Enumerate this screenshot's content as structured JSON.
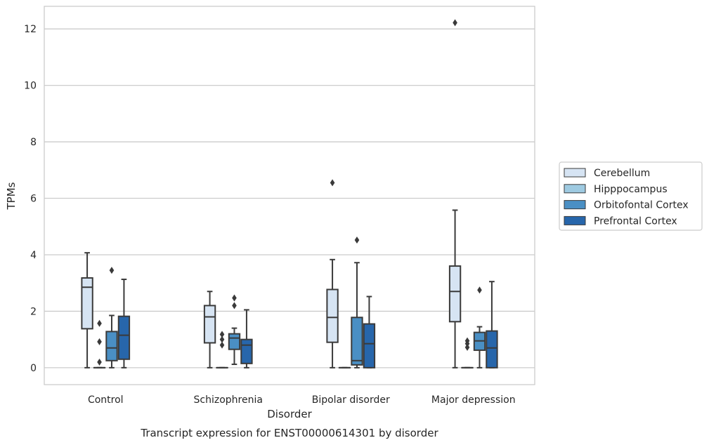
{
  "chart_data": {
    "type": "boxplot",
    "title": "Transcript expression for ENST00000614301 by disorder",
    "xlabel": "Disorder",
    "ylabel": "TPMs",
    "categories": [
      "Control",
      "Schizophrenia",
      "Bipolar disorder",
      "Major depression"
    ],
    "ylim": [
      -0.6,
      12.8
    ],
    "yticks": [
      0,
      2,
      4,
      6,
      8,
      10,
      12
    ],
    "grid": "horizontal",
    "legend": "right",
    "series": [
      {
        "name": "Cerebellum",
        "color": "#d6e4f3",
        "boxes": [
          {
            "whisker_low": 0.0,
            "q1": 1.38,
            "median": 2.85,
            "q3": 3.18,
            "whisker_high": 4.07,
            "outliers": []
          },
          {
            "whisker_low": 0.0,
            "q1": 0.88,
            "median": 1.8,
            "q3": 2.2,
            "whisker_high": 2.7,
            "outliers": []
          },
          {
            "whisker_low": 0.0,
            "q1": 0.9,
            "median": 1.78,
            "q3": 2.77,
            "whisker_high": 3.83,
            "outliers": [
              6.55
            ]
          },
          {
            "whisker_low": 0.0,
            "q1": 1.63,
            "median": 2.7,
            "q3": 3.6,
            "whisker_high": 5.58,
            "outliers": [
              12.22
            ]
          }
        ]
      },
      {
        "name": "Hipppocampus",
        "color": "#9ecae1",
        "boxes": [
          {
            "whisker_low": 0.0,
            "q1": 0.0,
            "median": 0.0,
            "q3": 0.0,
            "whisker_high": 0.0,
            "outliers": [
              0.2,
              0.92,
              1.57
            ]
          },
          {
            "whisker_low": 0.0,
            "q1": 0.0,
            "median": 0.0,
            "q3": 0.0,
            "whisker_high": 0.0,
            "outliers": [
              0.8,
              1.0,
              1.18
            ]
          },
          {
            "whisker_low": 0.0,
            "q1": 0.0,
            "median": 0.0,
            "q3": 0.0,
            "whisker_high": 0.0,
            "outliers": []
          },
          {
            "whisker_low": 0.0,
            "q1": 0.0,
            "median": 0.0,
            "q3": 0.0,
            "whisker_high": 0.0,
            "outliers": [
              0.72,
              0.85,
              0.95
            ]
          }
        ]
      },
      {
        "name": "Orbitofontal Cortex",
        "color": "#4a8fc4",
        "boxes": [
          {
            "whisker_low": 0.0,
            "q1": 0.25,
            "median": 0.7,
            "q3": 1.28,
            "whisker_high": 1.85,
            "outliers": [
              3.45
            ]
          },
          {
            "whisker_low": 0.12,
            "q1": 0.65,
            "median": 1.05,
            "q3": 1.2,
            "whisker_high": 1.4,
            "outliers": [
              2.2,
              2.47
            ]
          },
          {
            "whisker_low": 0.0,
            "q1": 0.1,
            "median": 0.25,
            "q3": 1.78,
            "whisker_high": 3.72,
            "outliers": [
              4.52
            ]
          },
          {
            "whisker_low": 0.0,
            "q1": 0.62,
            "median": 0.95,
            "q3": 1.25,
            "whisker_high": 1.45,
            "outliers": [
              2.75
            ]
          }
        ]
      },
      {
        "name": "Prefrontal Cortex",
        "color": "#2766ab",
        "boxes": [
          {
            "whisker_low": 0.0,
            "q1": 0.3,
            "median": 1.15,
            "q3": 1.82,
            "whisker_high": 3.13,
            "outliers": []
          },
          {
            "whisker_low": 0.0,
            "q1": 0.15,
            "median": 0.8,
            "q3": 1.0,
            "whisker_high": 2.05,
            "outliers": []
          },
          {
            "whisker_low": 0.0,
            "q1": 0.0,
            "median": 0.85,
            "q3": 1.55,
            "whisker_high": 2.52,
            "outliers": []
          },
          {
            "whisker_low": 0.0,
            "q1": 0.0,
            "median": 0.7,
            "q3": 1.3,
            "whisker_high": 3.05,
            "outliers": []
          }
        ]
      }
    ]
  }
}
